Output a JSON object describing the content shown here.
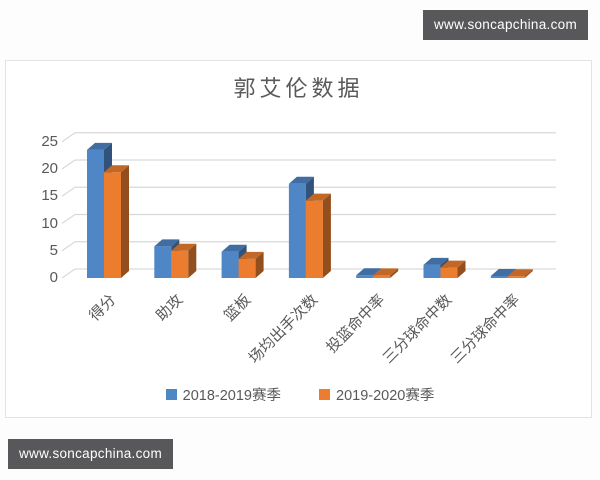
{
  "watermark": {
    "url_text": "www.soncapchina.com"
  },
  "chart_data": {
    "type": "bar",
    "subtype": "3d-clustered-column",
    "title": "郭艾伦数据",
    "categories": [
      "得分",
      "助攻",
      "篮板",
      "场均出手次数",
      "投篮命中率",
      "三分球命中数",
      "三分球命中率"
    ],
    "series": [
      {
        "name": "2018-2019赛季",
        "color": "#4f86c6",
        "values": [
          23.5,
          5.8,
          4.8,
          17.3,
          0.5,
          2.4,
          0.37
        ]
      },
      {
        "name": "2019-2020赛季",
        "color": "#ed7d2e",
        "values": [
          19.4,
          5.0,
          3.5,
          14.2,
          0.47,
          1.9,
          0.33
        ]
      }
    ],
    "xlabel": "",
    "ylabel": "",
    "ylim": [
      0,
      25
    ],
    "yticks": [
      0,
      5,
      10,
      15,
      20,
      25
    ],
    "grid": true,
    "legend_position": "bottom",
    "grid_color": "#d9d9d9",
    "text_color": "#595959"
  }
}
